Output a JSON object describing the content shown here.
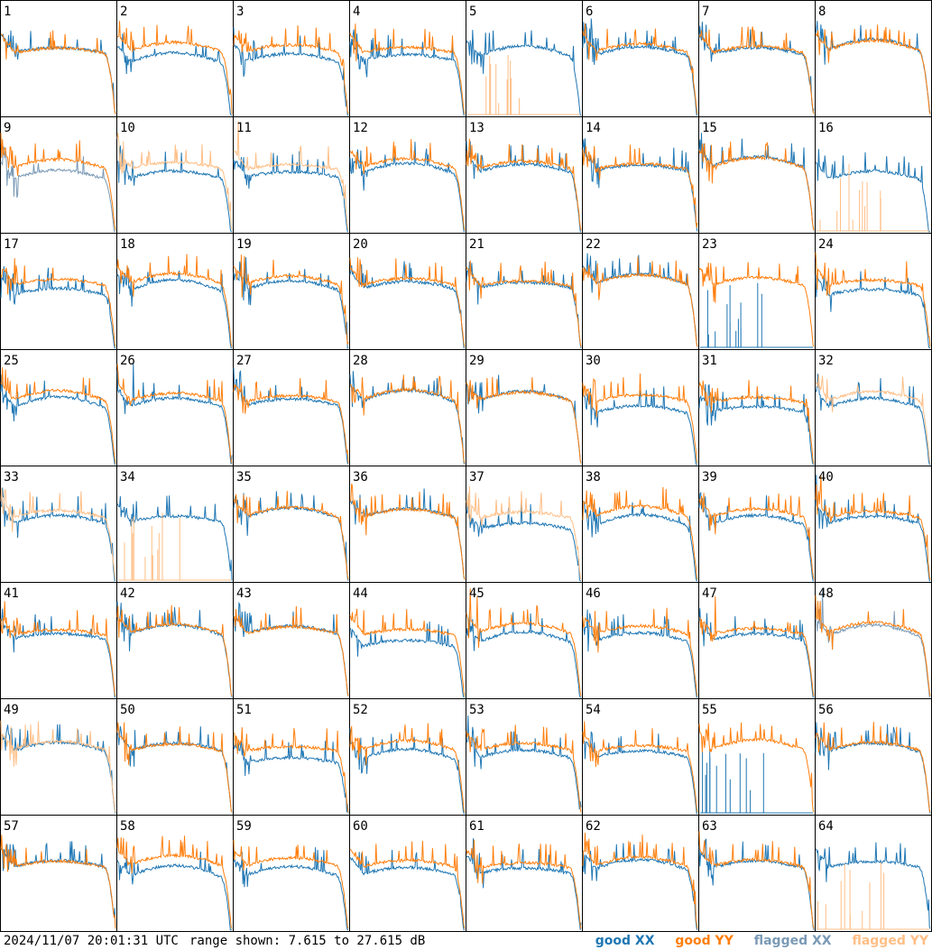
{
  "chart_data": {
    "type": "line",
    "layout": "small-multiples grid 8 x 8",
    "panels": [
      "1",
      "2",
      "3",
      "4",
      "5",
      "6",
      "7",
      "8",
      "9",
      "10",
      "11",
      "12",
      "13",
      "14",
      "15",
      "16",
      "17",
      "18",
      "19",
      "20",
      "21",
      "22",
      "23",
      "24",
      "25",
      "26",
      "27",
      "28",
      "29",
      "30",
      "31",
      "32",
      "33",
      "34",
      "35",
      "36",
      "37",
      "38",
      "39",
      "40",
      "41",
      "42",
      "43",
      "44",
      "45",
      "46",
      "47",
      "48",
      "49",
      "50",
      "51",
      "52",
      "53",
      "54",
      "55",
      "56",
      "57",
      "58",
      "59",
      "60",
      "61",
      "62",
      "63",
      "64"
    ],
    "ylim": [
      7.615,
      27.615
    ],
    "y_unit": "dB",
    "grid": false,
    "legend_placement": "bottom-right",
    "series": [
      {
        "name": "good XX",
        "color": "#1f77b4"
      },
      {
        "name": "good YY",
        "color": "#ff7f0e"
      },
      {
        "name": "flagged XX",
        "color": "#7a9ab6"
      },
      {
        "name": "flagged YY",
        "color": "#ffbf87"
      }
    ],
    "panel_states": {
      "flagged_xx": [
        "9",
        "48"
      ],
      "flagged_yy": [
        "10",
        "11",
        "32",
        "33",
        "37",
        "49"
      ],
      "xx_dropout": [
        "23",
        "55"
      ],
      "yy_dropout": [
        "5",
        "16",
        "34",
        "64"
      ]
    }
  },
  "footer": {
    "timestamp": "2024/11/07 20:01:31 UTC",
    "range_text": "range shown: 7.615 to 27.615 dB"
  },
  "legend": {
    "good_xx": "good XX",
    "good_yy": "good YY",
    "flagged_xx": "flagged XX",
    "flagged_yy": "flagged YY"
  }
}
